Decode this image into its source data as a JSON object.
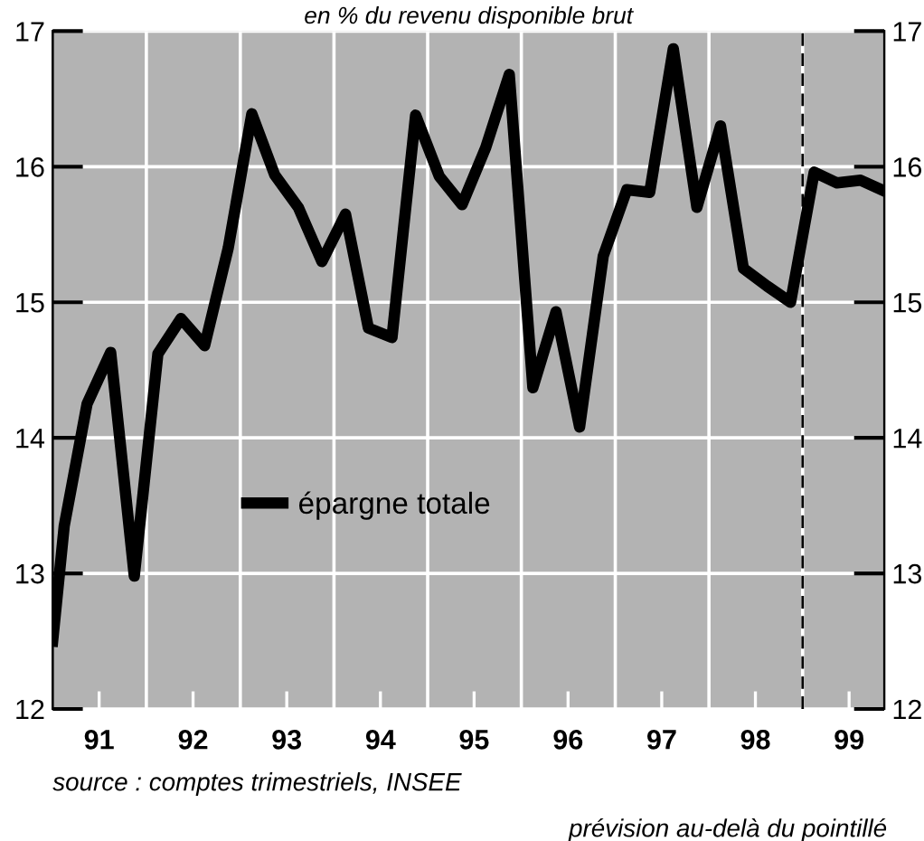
{
  "chart_data": {
    "type": "line",
    "title": "en % du revenu disponible brut",
    "x": [
      "1991-01-01",
      "1991-02-15",
      "1991-05-15",
      "1991-08-15",
      "1991-11-15",
      "1992-02-15",
      "1992-05-15",
      "1992-08-15",
      "1992-11-15",
      "1993-02-15",
      "1993-05-15",
      "1993-08-15",
      "1993-11-15",
      "1994-02-15",
      "1994-05-15",
      "1994-08-15",
      "1994-11-15",
      "1995-02-15",
      "1995-05-15",
      "1995-08-15",
      "1995-11-15",
      "1996-02-15",
      "1996-05-15",
      "1996-08-15",
      "1996-11-15",
      "1997-02-15",
      "1997-05-15",
      "1997-08-15",
      "1997-11-15",
      "1998-02-15",
      "1998-05-15",
      "1998-08-15",
      "1998-11-15",
      "1999-02-15",
      "1999-05-15",
      "1999-08-15",
      "1999-11-15"
    ],
    "series": [
      {
        "name": "épargne totale",
        "color": "#000000",
        "values": [
          12.5,
          13.35,
          14.25,
          14.63,
          12.98,
          14.62,
          14.88,
          14.68,
          15.4,
          16.39,
          15.94,
          15.7,
          15.3,
          15.65,
          14.81,
          14.74,
          16.38,
          15.93,
          15.72,
          16.14,
          16.68,
          14.37,
          14.93,
          14.08,
          15.34,
          15.83,
          15.81,
          16.87,
          15.7,
          16.3,
          15.25,
          15.12,
          15.0,
          15.96,
          15.88,
          15.9,
          15.82
        ]
      }
    ],
    "xlim": [
      "1991-01-01",
      "1999-11-15"
    ],
    "xticks": [
      {
        "value": "1991-07-01",
        "label": "91"
      },
      {
        "value": "1992-01-01",
        "label": null
      },
      {
        "value": "1992-07-01",
        "label": "92"
      },
      {
        "value": "1993-01-01",
        "label": null
      },
      {
        "value": "1993-07-01",
        "label": "93"
      },
      {
        "value": "1994-01-01",
        "label": null
      },
      {
        "value": "1994-07-01",
        "label": "94"
      },
      {
        "value": "1995-01-01",
        "label": null
      },
      {
        "value": "1995-07-01",
        "label": "95"
      },
      {
        "value": "1996-01-01",
        "label": null
      },
      {
        "value": "1996-07-01",
        "label": "96"
      },
      {
        "value": "1997-01-01",
        "label": null
      },
      {
        "value": "1997-07-01",
        "label": "97"
      },
      {
        "value": "1998-01-01",
        "label": null
      },
      {
        "value": "1998-07-01",
        "label": "98"
      },
      {
        "value": "1999-01-01",
        "label": null
      },
      {
        "value": "1999-07-01",
        "label": "99"
      }
    ],
    "ylim": [
      12,
      17
    ],
    "yticks": [
      12,
      13,
      14,
      15,
      16,
      17
    ],
    "y2lim": [
      12,
      17
    ],
    "y2ticks": [
      12,
      13,
      14,
      15,
      16,
      17
    ],
    "ref_lines": [
      {
        "axis": "x",
        "value": "1999-01-01",
        "label": null,
        "color": "#000000",
        "line_style": "dashed"
      }
    ],
    "grid": true,
    "legend": "center",
    "marker": "none",
    "line_style": "solid",
    "annotations": [
      "source : comptes trimestriels, INSEE",
      "prévision au-delà du pointillé"
    ]
  }
}
